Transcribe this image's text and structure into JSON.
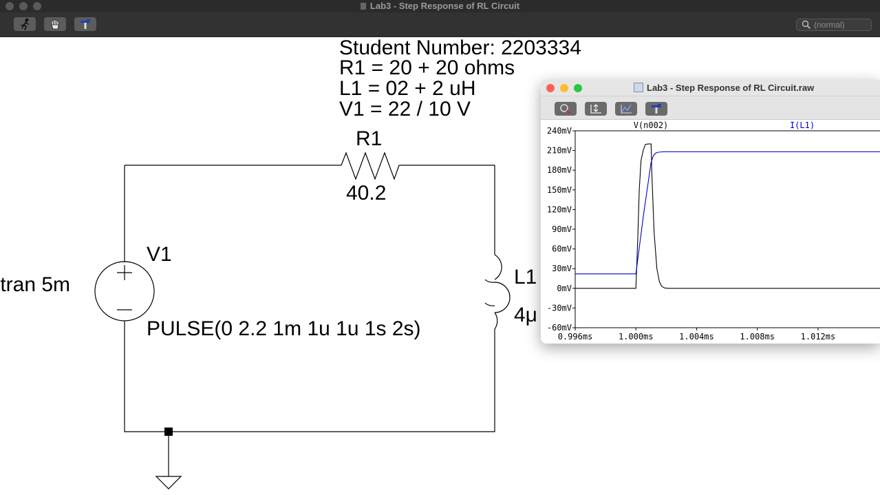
{
  "window": {
    "title": "Lab3 - Step Response of RL Circuit"
  },
  "toolbar": {
    "buttons": [
      {
        "icon": "run-icon"
      },
      {
        "icon": "hand-icon"
      },
      {
        "icon": "hammer-icon"
      }
    ],
    "search_placeholder": "(normal)"
  },
  "schematic": {
    "notes": [
      "Student Number: 2203334",
      "R1 = 20 + 20 ohms",
      "L1 = 02 + 2 uH",
      "V1 = 22 / 10 V"
    ],
    "r1_name": "R1",
    "r1_value": "40.2",
    "v1_name": "V1",
    "v1_value": "PULSE(0 2.2 1m 1u 1u 1s 2s)",
    "l1_name": "L1",
    "l1_value": "4μ",
    "directive": ".tran 5m"
  },
  "plot_window": {
    "title": "Lab3 - Step Response of RL Circuit.raw",
    "buttons": [
      {
        "icon": "zoom-icon"
      },
      {
        "icon": "autoscale-icon"
      },
      {
        "icon": "cursor-icon"
      },
      {
        "icon": "hammer-icon"
      }
    ]
  },
  "colors": {
    "trace_v": "#000000",
    "trace_i": "#0000c8"
  },
  "chart_data": {
    "type": "line",
    "x_ticks": [
      "0.996ms",
      "1.000ms",
      "1.004ms",
      "1.008ms",
      "1.012ms"
    ],
    "y_ticks": [
      "240mV",
      "210mV",
      "180mV",
      "150mV",
      "120mV",
      "90mV",
      "60mV",
      "30mV",
      "0mV",
      "-30mV",
      "-60mV"
    ],
    "xlim": [
      0.996,
      1.0164
    ],
    "ylim": [
      -60,
      240
    ],
    "series": [
      {
        "name": "V(n002)",
        "color": "#000000",
        "x": [
          0.996,
          1.0,
          1.00012,
          1.00022,
          1.00034,
          1.00048,
          1.00062,
          1.0008,
          1.001,
          1.00105,
          1.0012,
          1.00138,
          1.00155,
          1.0017,
          1.0019,
          1.0022,
          1.0164
        ],
        "y": [
          0,
          0,
          75,
          150,
          195,
          210,
          219,
          220,
          220,
          175,
          85,
          30,
          10,
          3,
          0.5,
          0,
          0
        ]
      },
      {
        "name": "I(L1)",
        "color": "#0000c8",
        "x": [
          0.996,
          1.0,
          1.0005,
          1.001,
          1.00115,
          1.0013,
          1.0015,
          1.0018,
          1.0164
        ],
        "y": [
          22,
          22,
          112,
          192,
          202,
          206,
          207.5,
          208,
          208
        ]
      }
    ]
  }
}
